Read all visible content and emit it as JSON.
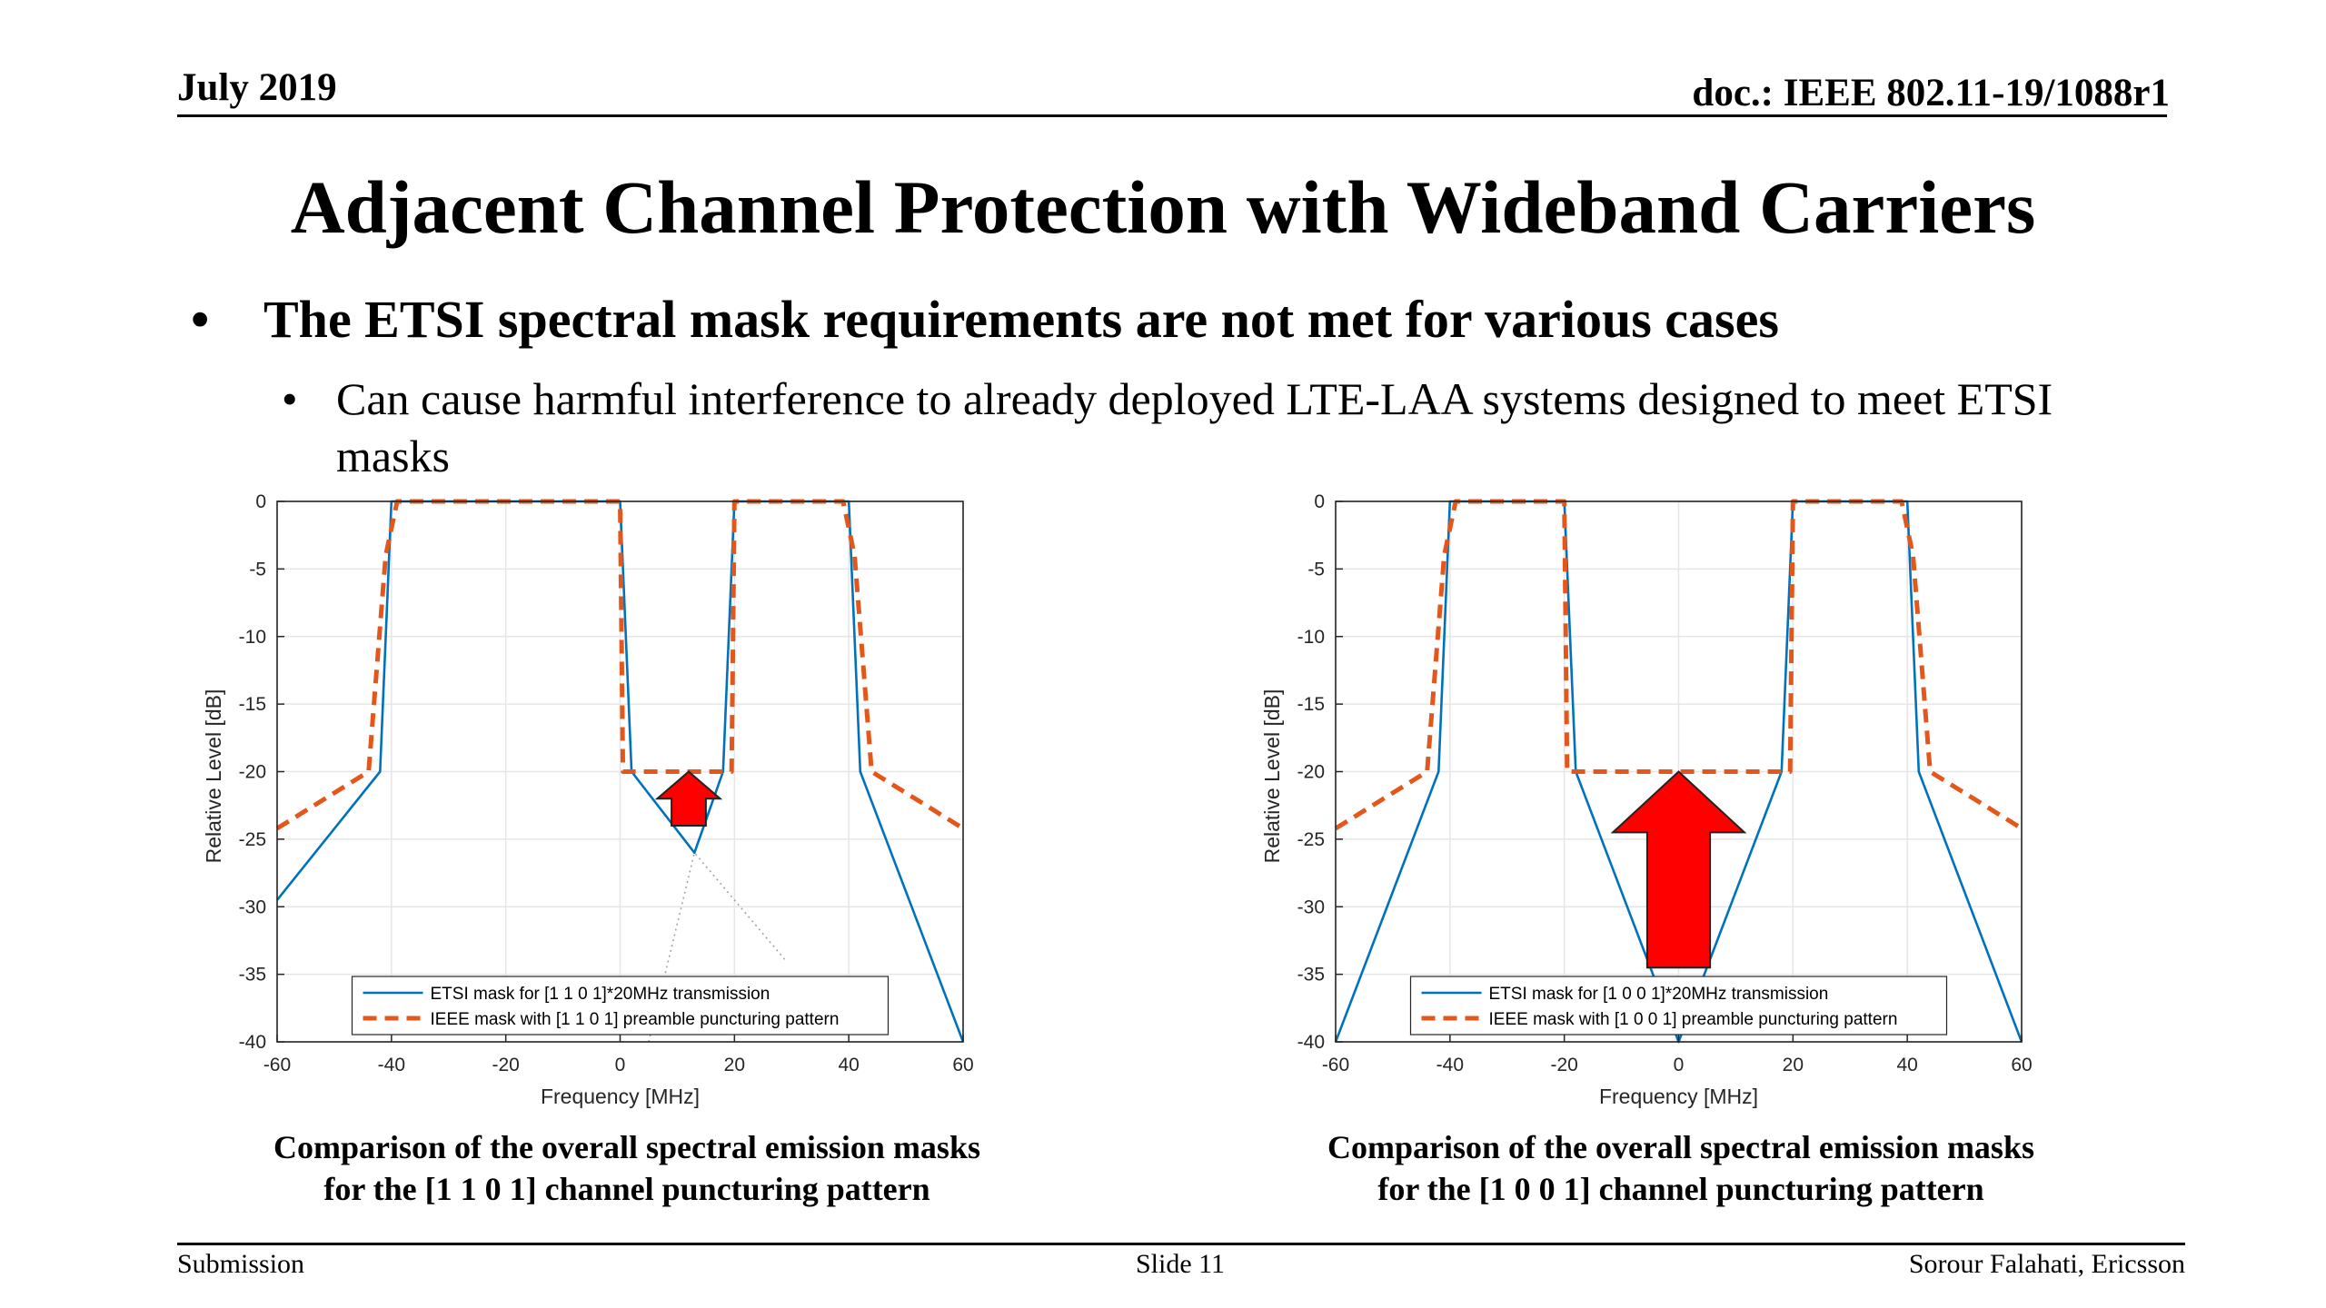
{
  "header": {
    "date": "July 2019",
    "doc": "doc.: IEEE 802.11-19/1088r1"
  },
  "title": "Adjacent Channel Protection with Wideband Carriers",
  "bullets": [
    {
      "marker": "•",
      "text": "The ETSI spectral mask requirements are not met for various cases"
    },
    {
      "marker": "•",
      "text": "Can cause harmful interference to already deployed LTE-LAA systems designed to meet ETSI masks"
    }
  ],
  "footer": {
    "left": "Submission",
    "center": "Slide 11",
    "right": "Sorour Falahati, Ericsson"
  },
  "colors": {
    "etsi": "#0072BD",
    "ieee": "#E4571B",
    "arrow_fill": "#FF0000",
    "arrow_stroke": "#222222",
    "grid": "#E6E6E6"
  },
  "chart_data": [
    {
      "type": "line",
      "caption_lines": [
        "Comparison of the overall spectral emission masks",
        "for the [1 1 0 1] channel puncturing pattern"
      ],
      "xlabel": "Frequency [MHz]",
      "ylabel": "Relative Level [dB]",
      "xlim": [
        -60,
        60
      ],
      "ylim": [
        -40,
        0
      ],
      "xticks": [
        -60,
        -40,
        -20,
        0,
        20,
        40,
        60
      ],
      "yticks": [
        0,
        -5,
        -10,
        -15,
        -20,
        -25,
        -30,
        -35,
        -40
      ],
      "grid": true,
      "legend_position": "bottom-center",
      "series": [
        {
          "name": "ETSI mask for [1 1 0 1]*20MHz transmission",
          "style": "solid",
          "color": "#0072BD",
          "x": [
            -60,
            -42,
            -40,
            0,
            2,
            13,
            18,
            20,
            40,
            42,
            60
          ],
          "y": [
            -29.5,
            -20,
            0,
            0,
            -20,
            -26,
            -20,
            0,
            0,
            -20,
            -40
          ]
        },
        {
          "name": "IEEE mask with [1 1 0 1] preamble puncturing pattern",
          "style": "dashed",
          "color": "#E4571B",
          "x": [
            -60,
            -44,
            -41,
            -39,
            0,
            0.5,
            19.5,
            20,
            39,
            41,
            44,
            60
          ],
          "y": [
            -24.2,
            -20,
            -4,
            0,
            0,
            -20,
            -20,
            0,
            0,
            -4,
            -20,
            -24.2
          ]
        },
        {
          "name": "",
          "style": "dotted",
          "color": "#9BA7A7",
          "x": [
            5,
            13,
            29
          ],
          "y": [
            -40,
            -26,
            -34
          ]
        }
      ],
      "annotation_arrow": {
        "x": 12,
        "y_base": -24,
        "y_tip": -20,
        "half_width": 5.5,
        "shaft_half_width": 3,
        "head_length": 2
      }
    },
    {
      "type": "line",
      "caption_lines": [
        "Comparison of the overall spectral emission masks",
        "for the [1 0 0 1] channel puncturing pattern"
      ],
      "xlabel": "Frequency [MHz]",
      "ylabel": "Relative Level [dB]",
      "xlim": [
        -60,
        60
      ],
      "ylim": [
        -40,
        0
      ],
      "xticks": [
        -60,
        -40,
        -20,
        0,
        20,
        40,
        60
      ],
      "yticks": [
        0,
        -5,
        -10,
        -15,
        -20,
        -25,
        -30,
        -35,
        -40
      ],
      "grid": true,
      "legend_position": "bottom-center",
      "series": [
        {
          "name": "ETSI mask for [1 0 0 1]*20MHz transmission",
          "style": "solid",
          "color": "#0072BD",
          "x": [
            -60,
            -42,
            -40,
            -20,
            -18,
            0,
            18,
            20,
            40,
            42,
            60
          ],
          "y": [
            -40,
            -20,
            0,
            0,
            -20,
            -40,
            -20,
            0,
            0,
            -20,
            -40
          ]
        },
        {
          "name": "IEEE mask with [1 0 0 1] preamble puncturing pattern",
          "style": "dashed",
          "color": "#E4571B",
          "x": [
            -60,
            -44,
            -41,
            -39,
            -20,
            -19.5,
            19.5,
            20,
            39,
            41,
            44,
            60
          ],
          "y": [
            -24.2,
            -20,
            -4,
            0,
            0,
            -20,
            -20,
            0,
            0,
            -4,
            -20,
            -24.2
          ]
        }
      ],
      "annotation_arrow": {
        "x": 0,
        "y_base": -34.5,
        "y_tip": -20,
        "half_width": 11.5,
        "shaft_half_width": 5.5,
        "head_length": 4.5
      }
    }
  ]
}
